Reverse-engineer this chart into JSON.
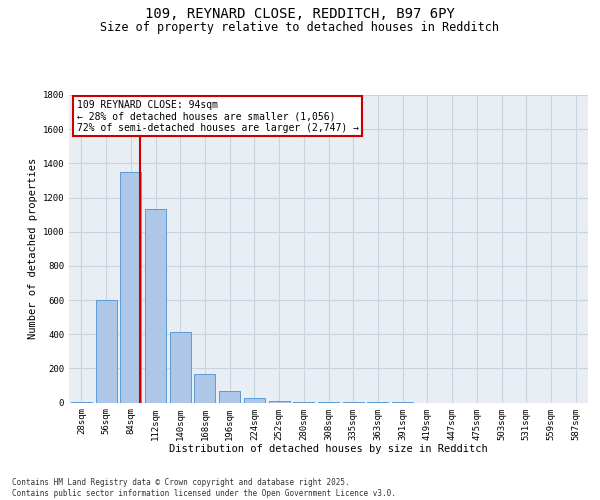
{
  "title": "109, REYNARD CLOSE, REDDITCH, B97 6PY",
  "subtitle": "Size of property relative to detached houses in Redditch",
  "xlabel": "Distribution of detached houses by size in Redditch",
  "ylabel": "Number of detached properties",
  "categories": [
    "28sqm",
    "56sqm",
    "84sqm",
    "112sqm",
    "140sqm",
    "168sqm",
    "196sqm",
    "224sqm",
    "252sqm",
    "280sqm",
    "308sqm",
    "335sqm",
    "363sqm",
    "391sqm",
    "419sqm",
    "447sqm",
    "475sqm",
    "503sqm",
    "531sqm",
    "559sqm",
    "587sqm"
  ],
  "values": [
    2,
    600,
    1350,
    1130,
    410,
    165,
    70,
    25,
    10,
    5,
    3,
    2,
    1,
    1,
    0,
    0,
    0,
    0,
    0,
    0,
    0
  ],
  "bar_color": "#aec6e8",
  "bar_edge_color": "#5b9bd5",
  "ylim": [
    0,
    1800
  ],
  "yticks": [
    0,
    200,
    400,
    600,
    800,
    1000,
    1200,
    1400,
    1600,
    1800
  ],
  "property_label": "109 REYNARD CLOSE: 94sqm",
  "annotation_line1": "← 28% of detached houses are smaller (1,056)",
  "annotation_line2": "72% of semi-detached houses are larger (2,747) →",
  "vline_color": "#cc0000",
  "annotation_border_color": "#cc0000",
  "footer_line1": "Contains HM Land Registry data © Crown copyright and database right 2025.",
  "footer_line2": "Contains public sector information licensed under the Open Government Licence v3.0.",
  "bg_color": "#e8eef4",
  "grid_color": "#c8d4de",
  "title_fontsize": 10,
  "subtitle_fontsize": 8.5,
  "axis_label_fontsize": 7.5,
  "tick_fontsize": 6.5,
  "annotation_fontsize": 7,
  "footer_fontsize": 5.5
}
